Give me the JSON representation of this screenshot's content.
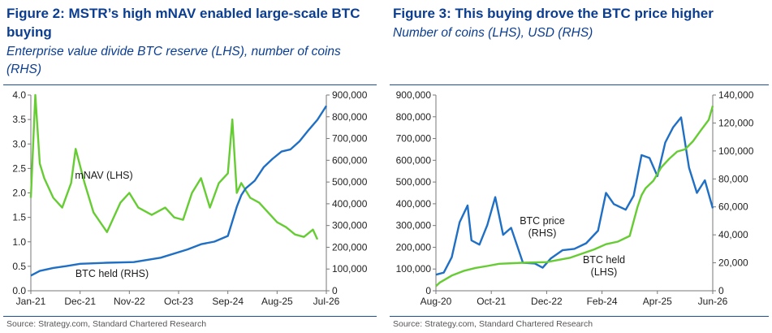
{
  "chart_data": [
    {
      "type": "line",
      "title": "Figure 2: MSTR’s high mNAV enabled large-scale BTC buying",
      "subtitle": "Enterprise value divide BTC reserve (LHS), number of coins (RHS)",
      "source": "Source: Strategy.com, Standard Chartered Research",
      "x_tick_labels": [
        "Jan-21",
        "Dec-21",
        "Nov-22",
        "Oct-23",
        "Sep-24",
        "Aug-25",
        "Jul-26"
      ],
      "y_left": {
        "lim": [
          0,
          4.0
        ],
        "tick_labels": [
          "0.0",
          "0.5",
          "1.0",
          "1.5",
          "2.0",
          "2.5",
          "3.0",
          "3.5",
          "4.0"
        ]
      },
      "y_right": {
        "lim": [
          0,
          900000
        ],
        "tick_labels": [
          "0",
          "100,000",
          "200,000",
          "300,000",
          "400,000",
          "500,000",
          "600,000",
          "700,000",
          "800,000",
          "900,000"
        ]
      },
      "grid": false,
      "series": [
        {
          "name": "mNAV (LHS)",
          "axis": "left",
          "color": "#66cc33",
          "x": [
            "2021-01",
            "2021-02",
            "2021-03",
            "2021-04",
            "2021-06",
            "2021-08",
            "2021-10",
            "2021-11",
            "2022-01",
            "2022-03",
            "2022-06",
            "2022-09",
            "2022-11",
            "2023-01",
            "2023-04",
            "2023-07",
            "2023-09",
            "2023-11",
            "2024-01",
            "2024-03",
            "2024-05",
            "2024-07",
            "2024-09",
            "2024-10",
            "2024-11",
            "2024-12",
            "2025-02",
            "2025-04",
            "2025-06",
            "2025-08",
            "2025-10",
            "2025-12",
            "2026-02",
            "2026-04",
            "2026-05"
          ],
          "values": [
            1.9,
            4.0,
            2.6,
            2.3,
            1.9,
            1.7,
            2.2,
            2.9,
            2.2,
            1.6,
            1.2,
            1.8,
            2.0,
            1.7,
            1.55,
            1.7,
            1.5,
            1.45,
            2.0,
            2.3,
            1.7,
            2.2,
            2.4,
            3.5,
            2.0,
            2.2,
            1.9,
            1.8,
            1.6,
            1.4,
            1.3,
            1.15,
            1.1,
            1.25,
            1.05
          ]
        },
        {
          "name": "BTC held (RHS)",
          "axis": "right",
          "color": "#1f6fc5",
          "x": [
            "2021-01",
            "2021-03",
            "2021-06",
            "2021-09",
            "2021-12",
            "2022-06",
            "2022-12",
            "2023-06",
            "2023-12",
            "2024-03",
            "2024-06",
            "2024-09",
            "2024-11",
            "2024-12",
            "2025-01",
            "2025-03",
            "2025-05",
            "2025-07",
            "2025-09",
            "2025-11",
            "2026-01",
            "2026-03",
            "2026-05",
            "2026-07"
          ],
          "values": [
            70000,
            91000,
            105000,
            114000,
            124000,
            129000,
            132000,
            152000,
            190000,
            214000,
            226000,
            252000,
            386000,
            439000,
            471000,
            506000,
            568000,
            607000,
            640000,
            650000,
            687000,
            738000,
            786000,
            850000
          ]
        }
      ],
      "annotations": [
        "mNAV (LHS)",
        "BTC held (RHS)"
      ]
    },
    {
      "type": "line",
      "title": "Figure 3: This buying drove the BTC price higher",
      "subtitle": "Number of coins (LHS), USD (RHS)",
      "source": "Source: Strategy.com, Standard Chartered Research",
      "x_tick_labels": [
        "Aug-20",
        "Oct-21",
        "Dec-22",
        "Feb-24",
        "Apr-25",
        "Jun-26"
      ],
      "y_left": {
        "lim": [
          0,
          900000
        ],
        "tick_labels": [
          "0",
          "100,000",
          "200,000",
          "300,000",
          "400,000",
          "500,000",
          "600,000",
          "700,000",
          "800,000",
          "900,000"
        ]
      },
      "y_right": {
        "lim": [
          0,
          140000
        ],
        "tick_labels": [
          "0",
          "20,000",
          "40,000",
          "60,000",
          "80,000",
          "100,000",
          "120,000",
          "140,000"
        ]
      },
      "grid": false,
      "series": [
        {
          "name": "BTC price (RHS)",
          "axis": "right",
          "color": "#1f6fc5",
          "x": [
            "2020-08",
            "2020-10",
            "2020-12",
            "2021-02",
            "2021-04",
            "2021-05",
            "2021-07",
            "2021-09",
            "2021-11",
            "2022-01",
            "2022-03",
            "2022-06",
            "2022-09",
            "2022-11",
            "2023-01",
            "2023-04",
            "2023-07",
            "2023-10",
            "2024-01",
            "2024-03",
            "2024-05",
            "2024-08",
            "2024-10",
            "2024-12",
            "2025-02",
            "2025-04",
            "2025-06",
            "2025-08",
            "2025-10",
            "2025-12",
            "2026-02",
            "2026-04",
            "2026-06"
          ],
          "values": [
            11500,
            13000,
            24000,
            49000,
            61000,
            36000,
            33000,
            47000,
            67000,
            40000,
            45000,
            20000,
            19500,
            16500,
            23000,
            29000,
            30000,
            34000,
            43000,
            70000,
            62000,
            58000,
            68000,
            97000,
            95000,
            82000,
            106000,
            117000,
            124000,
            88000,
            70000,
            79000,
            59000
          ]
        },
        {
          "name": "BTC held (LHS)",
          "axis": "left",
          "color": "#66cc33",
          "x": [
            "2020-08",
            "2020-09",
            "2020-12",
            "2021-03",
            "2021-06",
            "2021-09",
            "2021-12",
            "2022-06",
            "2022-12",
            "2023-06",
            "2023-12",
            "2024-03",
            "2024-06",
            "2024-09",
            "2024-11",
            "2024-12",
            "2025-01",
            "2025-03",
            "2025-05",
            "2025-07",
            "2025-09",
            "2025-11",
            "2026-01",
            "2026-03",
            "2026-05",
            "2026-06"
          ],
          "values": [
            21000,
            38000,
            70000,
            91000,
            105000,
            114000,
            124000,
            129000,
            132000,
            152000,
            190000,
            214000,
            226000,
            252000,
            386000,
            439000,
            471000,
            506000,
            568000,
            607000,
            640000,
            650000,
            687000,
            738000,
            786000,
            850000
          ]
        }
      ],
      "annotations": [
        "BTC price (RHS)",
        "BTC held (LHS)"
      ]
    }
  ]
}
